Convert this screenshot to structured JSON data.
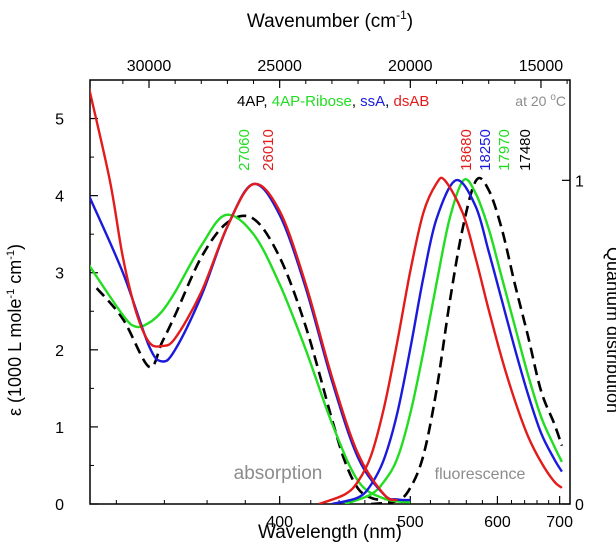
{
  "chart_data": {
    "type": "line",
    "x_axis_top": {
      "label": "Wavenumber (cm",
      "label_sup": "-1",
      "label_end": ")",
      "ticks": [
        30000,
        25000,
        20000,
        15000
      ]
    },
    "x_axis_bottom": {
      "label": "Wavelength (nm)",
      "scale": "reciprocal",
      "range_nm": [
        310,
        720
      ],
      "ticks": [
        400,
        500,
        600,
        700
      ]
    },
    "y_axis_left": {
      "label_part1": "ε (1000 L mole",
      "label_sup1": "-1",
      "label_part2": " cm",
      "label_sup2": "-1",
      "label_part3": ")",
      "range": [
        0,
        5.5
      ],
      "ticks": [
        0,
        1,
        2,
        3,
        4,
        5
      ]
    },
    "y_axis_right": {
      "label": "Quantum distribution",
      "range": [
        0,
        1.31
      ],
      "ticks": [
        0,
        1
      ]
    },
    "legend": [
      {
        "text": "4AP",
        "color": "#000000"
      },
      {
        "text": ", ",
        "color": "#000000"
      },
      {
        "text": "4AP-Ribose",
        "color": "#22dd22"
      },
      {
        "text": ", ",
        "color": "#000000"
      },
      {
        "text": "ssA",
        "color": "#1a1add"
      },
      {
        "text": ", ",
        "color": "#000000"
      },
      {
        "text": "dsAB",
        "color": "#e31b1b"
      }
    ],
    "condition": {
      "text": "at 20 ",
      "sup": "o",
      "unit": "C"
    },
    "region_labels": [
      "absorption",
      "fluorescence"
    ],
    "peak_labels": [
      {
        "text": "27060",
        "color": "#22dd22"
      },
      {
        "text": "26010",
        "color": "#e31b1b"
      },
      {
        "text": "18680",
        "color": "#e31b1b"
      },
      {
        "text": "18250",
        "color": "#1a1add"
      },
      {
        "text": "17970",
        "color": "#22dd22"
      },
      {
        "text": "17480",
        "color": "#000000"
      }
    ],
    "series": [
      {
        "label": "4AP",
        "color": "#000000",
        "dashed": true,
        "absorption": {
          "x_wavenumber": [
            32000,
            31000,
            30000,
            29500,
            29000,
            28000,
            27000,
            26000,
            25000,
            24000,
            23000,
            22500,
            22000,
            21500,
            21000
          ],
          "y_epsilon": [
            2.8,
            2.4,
            1.78,
            2.1,
            2.45,
            3.2,
            3.65,
            3.7,
            3.2,
            2.3,
            1.1,
            0.55,
            0.2,
            0.08,
            0.05
          ]
        },
        "fluorescence": {
          "x_wavenumber": [
            21500,
            20500,
            20000,
            19500,
            19000,
            18500,
            18000,
            17480,
            17000,
            16500,
            16000,
            15500,
            15000,
            14500,
            14200
          ],
          "y_quantum": [
            0.0,
            0.01,
            0.05,
            0.15,
            0.35,
            0.62,
            0.85,
            1.0,
            0.97,
            0.85,
            0.68,
            0.52,
            0.35,
            0.25,
            0.18
          ]
        }
      },
      {
        "label": "4AP-Ribose",
        "color": "#22dd22",
        "dashed": false,
        "absorption": {
          "x_wavenumber": [
            32300,
            31000,
            30500,
            30000,
            29500,
            29000,
            28000,
            27060,
            26000,
            25000,
            24000,
            23000,
            22000,
            21000,
            20000
          ],
          "y_epsilon": [
            3.1,
            2.45,
            2.3,
            2.35,
            2.5,
            2.75,
            3.35,
            3.75,
            3.5,
            2.85,
            2.0,
            1.05,
            0.3,
            0.07,
            0.02
          ]
        },
        "fluorescence": {
          "x_wavenumber": [
            22500,
            21500,
            21000,
            20500,
            20000,
            19500,
            19000,
            18500,
            17970,
            17500,
            17000,
            16500,
            16000,
            15500,
            15000,
            14500,
            14200
          ],
          "y_quantum": [
            0.0,
            0.03,
            0.07,
            0.14,
            0.28,
            0.47,
            0.68,
            0.88,
            1.0,
            0.96,
            0.85,
            0.7,
            0.55,
            0.4,
            0.27,
            0.18,
            0.13
          ]
        }
      },
      {
        "label": "ssA",
        "color": "#1a1add",
        "dashed": false,
        "absorption": {
          "x_wavenumber": [
            32300,
            31000,
            30000,
            29500,
            29000,
            28000,
            27000,
            26010,
            25000,
            24000,
            23000,
            22000,
            21000,
            20500,
            20000
          ],
          "y_epsilon": [
            4.0,
            3.0,
            2.05,
            1.85,
            2.0,
            2.7,
            3.6,
            4.15,
            3.75,
            2.8,
            1.6,
            0.6,
            0.12,
            0.06,
            0.05
          ]
        },
        "fluorescence": {
          "x_wavenumber": [
            23000,
            22000,
            21500,
            21000,
            20500,
            20000,
            19500,
            19000,
            18250,
            17500,
            17000,
            16500,
            16000,
            15500,
            15000,
            14500,
            14200
          ],
          "y_quantum": [
            0.0,
            0.02,
            0.06,
            0.14,
            0.28,
            0.48,
            0.7,
            0.88,
            1.0,
            0.92,
            0.78,
            0.63,
            0.48,
            0.34,
            0.22,
            0.14,
            0.1
          ]
        }
      },
      {
        "label": "dsAB",
        "color": "#e31b1b",
        "dashed": false,
        "absorption": {
          "x_wavenumber": [
            32300,
            31500,
            31000,
            30500,
            30000,
            29500,
            29000,
            28000,
            27000,
            26010,
            25000,
            24000,
            23000,
            22000,
            21000,
            20500
          ],
          "y_epsilon": [
            5.4,
            4.2,
            3.2,
            2.5,
            2.1,
            2.05,
            2.15,
            2.75,
            3.6,
            4.15,
            3.8,
            2.85,
            1.65,
            0.65,
            0.12,
            0.05
          ]
        },
        "fluorescence": {
          "x_wavenumber": [
            23500,
            22500,
            22000,
            21500,
            21000,
            20500,
            20000,
            19500,
            19000,
            18680,
            18000,
            17500,
            17000,
            16500,
            16000,
            15500,
            15000,
            14500,
            14200
          ],
          "y_quantum": [
            0.0,
            0.03,
            0.07,
            0.15,
            0.3,
            0.5,
            0.72,
            0.9,
            0.99,
            1.0,
            0.9,
            0.76,
            0.6,
            0.45,
            0.32,
            0.21,
            0.13,
            0.07,
            0.05
          ]
        }
      }
    ]
  }
}
